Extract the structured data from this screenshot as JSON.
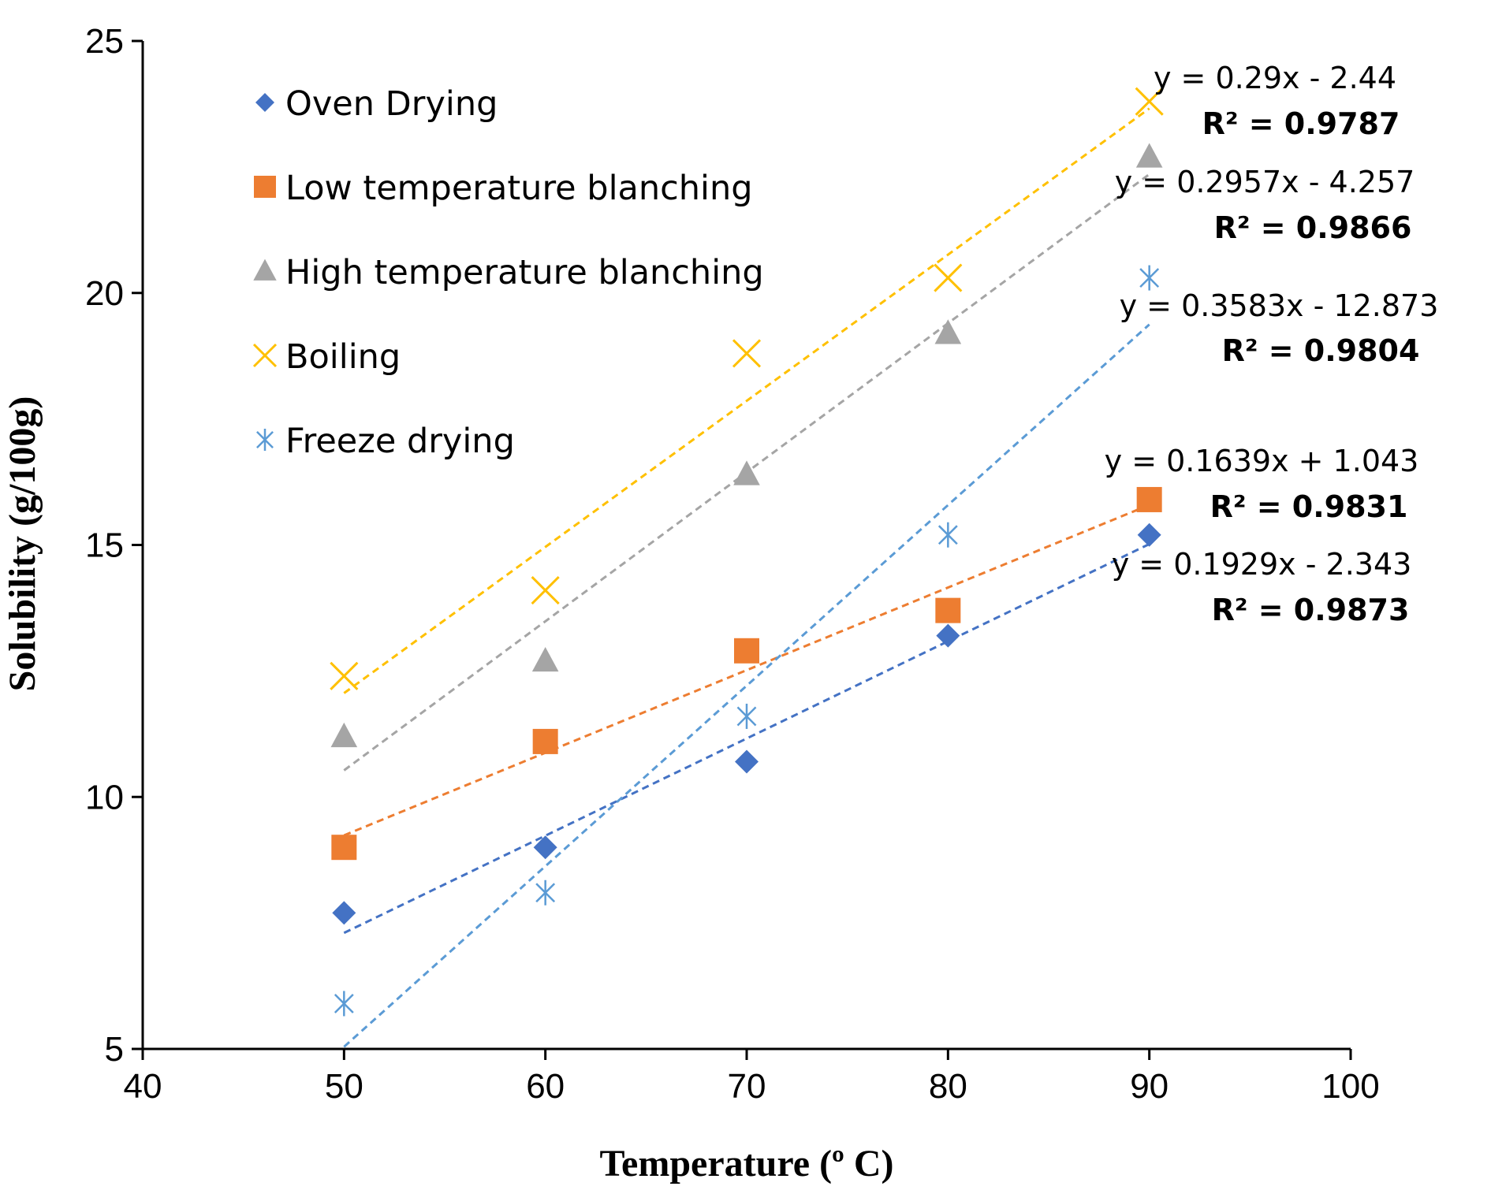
{
  "chart_data": {
    "type": "scatter",
    "title": "",
    "xlabel": "Temperature (º C)",
    "ylabel": "Solubility (g/100g)",
    "xlim": [
      40,
      100
    ],
    "ylim": [
      5,
      25
    ],
    "xticks": [
      40,
      50,
      60,
      70,
      80,
      90,
      100
    ],
    "yticks": [
      5,
      10,
      15,
      20,
      25
    ],
    "grid": false,
    "legend_position": "top-left",
    "x": [
      50,
      60,
      70,
      80,
      90
    ],
    "series": [
      {
        "name": "Oven Drying",
        "marker": "diamond",
        "color": "#4472C4",
        "values": [
          7.7,
          9.0,
          10.7,
          13.2,
          15.2
        ],
        "trendline": {
          "slope": 0.1929,
          "intercept": -2.343
        },
        "equation": "y = 0.1929x - 2.343",
        "r2": "R² = 0.9873"
      },
      {
        "name": "Low temperature blanching",
        "marker": "square",
        "color": "#ED7D31",
        "values": [
          9.0,
          11.1,
          12.9,
          13.7,
          15.9
        ],
        "trendline": {
          "slope": 0.1639,
          "intercept": 1.043
        },
        "equation": "y = 0.1639x + 1.043",
        "r2": "R² = 0.9831"
      },
      {
        "name": "High temperature blanching",
        "marker": "triangle",
        "color": "#A5A5A5",
        "values": [
          11.2,
          12.7,
          16.4,
          19.2,
          22.7
        ],
        "trendline": {
          "slope": 0.2957,
          "intercept": -4.257
        },
        "equation": "y = 0.2957x - 4.257",
        "r2": "R² = 0.9866"
      },
      {
        "name": "Boiling",
        "marker": "x",
        "color": "#FFC000",
        "values": [
          12.4,
          14.1,
          18.8,
          20.3,
          23.8
        ],
        "trendline": {
          "slope": 0.29,
          "intercept": -2.44
        },
        "equation": "y = 0.29x - 2.44",
        "r2": "R² = 0.9787"
      },
      {
        "name": "Freeze drying",
        "marker": "asterisk",
        "color": "#5B9BD5",
        "values": [
          5.9,
          8.1,
          11.6,
          15.2,
          20.3
        ],
        "trendline": {
          "slope": 0.3583,
          "intercept": -12.873
        },
        "equation": "y = 0.3583x - 12.873",
        "r2": "R² = 0.9804"
      }
    ],
    "annotation_order": [
      "Boiling",
      "High temperature blanching",
      "Freeze drying",
      "Low temperature blanching",
      "Oven Drying"
    ]
  }
}
